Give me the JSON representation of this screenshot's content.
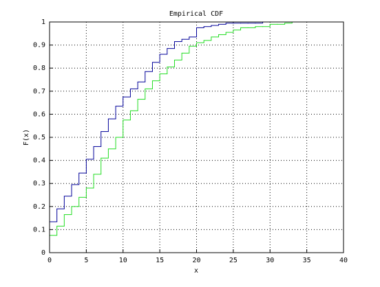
{
  "chart_data": {
    "type": "step",
    "title": "Empirical CDF",
    "x_label": "x",
    "y_label": "F(x)",
    "x": [
      0,
      1,
      2,
      3,
      4,
      5,
      6,
      7,
      8,
      9,
      10,
      11,
      12,
      13,
      14,
      15,
      16,
      17,
      18,
      19,
      20,
      21,
      22,
      23,
      24,
      25,
      26,
      27,
      28,
      29,
      30,
      31,
      32,
      33
    ],
    "series": [
      {
        "color": "#000099",
        "values": [
          0.134,
          0.19,
          0.245,
          0.295,
          0.345,
          0.405,
          0.46,
          0.525,
          0.58,
          0.635,
          0.675,
          0.71,
          0.74,
          0.785,
          0.825,
          0.86,
          0.885,
          0.915,
          0.925,
          0.935,
          0.975,
          0.98,
          0.985,
          0.99,
          0.995,
          0.995,
          0.995,
          0.995,
          0.995,
          1,
          null,
          null,
          null,
          null
        ]
      },
      {
        "color": "#22dd22",
        "values": [
          0.075,
          0.115,
          0.165,
          0.2,
          0.24,
          0.28,
          0.34,
          0.41,
          0.45,
          0.5,
          0.575,
          0.615,
          0.665,
          0.71,
          0.745,
          0.775,
          0.805,
          0.835,
          0.865,
          0.895,
          0.91,
          0.92,
          0.935,
          0.945,
          0.955,
          0.965,
          0.975,
          0.975,
          0.98,
          0.98,
          0.99,
          0.99,
          0.995,
          1
        ]
      }
    ],
    "xlim": [
      0,
      40
    ],
    "ylim": [
      0,
      1
    ],
    "xticks": [
      0,
      5,
      10,
      15,
      20,
      25,
      30,
      35,
      40
    ],
    "yticks": [
      0,
      0.1,
      0.2,
      0.3,
      0.4,
      0.5,
      0.6,
      0.7,
      0.8,
      0.9,
      1
    ],
    "grid": true
  }
}
